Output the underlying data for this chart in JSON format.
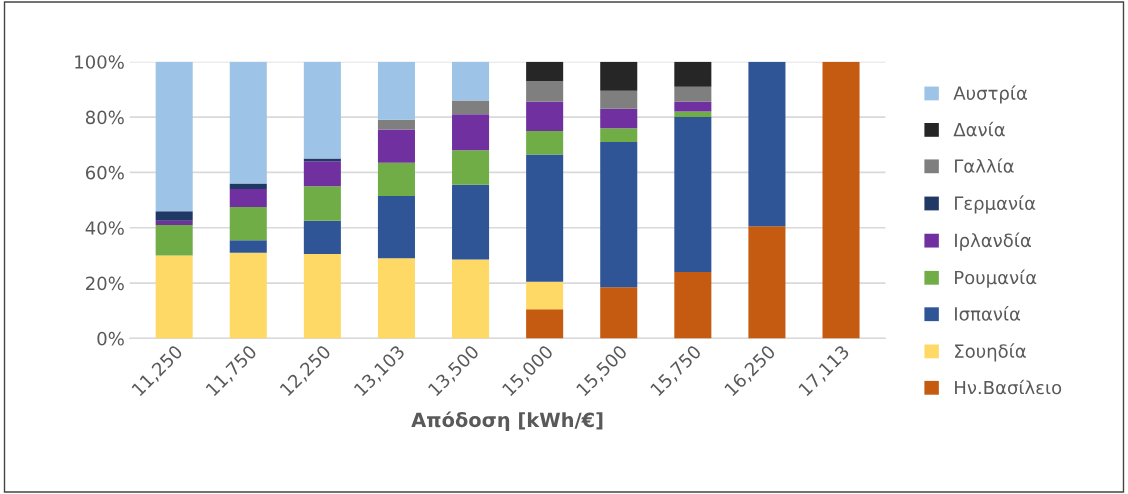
{
  "chart_data": {
    "type": "bar",
    "stacked": true,
    "xlabel": "Απόδοση [kWh/€]",
    "categories": [
      "11,250",
      "11,750",
      "12,250",
      "13,103",
      "13,500",
      "15,000",
      "15,500",
      "15,750",
      "16,250",
      "17,113"
    ],
    "series": [
      {
        "name": "Ην.Βασίλειο",
        "color": "#c55a11",
        "values": [
          0,
          0,
          0,
          0,
          0,
          10.5,
          18.5,
          24,
          40.5,
          100
        ]
      },
      {
        "name": "Σουηδία",
        "color": "#ffd966",
        "values": [
          30,
          31,
          30.5,
          29,
          28.5,
          10,
          0,
          0,
          0,
          0
        ]
      },
      {
        "name": "Ισπανία",
        "color": "#2f5597",
        "values": [
          0,
          4.5,
          12,
          22.5,
          27,
          46,
          52.5,
          56,
          59.5,
          0
        ]
      },
      {
        "name": "Ρουμανία",
        "color": "#70ad47",
        "values": [
          11,
          12,
          12.5,
          12,
          12.5,
          8.5,
          5,
          2,
          0,
          0
        ]
      },
      {
        "name": "Ιρλανδία",
        "color": "#7030a0",
        "values": [
          1.5,
          6.5,
          9,
          12,
          13,
          10.5,
          7,
          3.5,
          0,
          0
        ]
      },
      {
        "name": "Γερμανία",
        "color": "#203864",
        "values": [
          3.5,
          2,
          1,
          0,
          0,
          0,
          0,
          0,
          0,
          0
        ]
      },
      {
        "name": "Γαλλία",
        "color": "#7f7f7f",
        "values": [
          0,
          0,
          0,
          3.5,
          5,
          7.5,
          6.5,
          5.5,
          0,
          0
        ]
      },
      {
        "name": "Δανία",
        "color": "#262626",
        "values": [
          0,
          0,
          0,
          0,
          0,
          7,
          10.5,
          9,
          0,
          0
        ]
      },
      {
        "name": "Αυστρία",
        "color": "#9dc3e6",
        "values": [
          54,
          44,
          35,
          21,
          14,
          0,
          0,
          0,
          0,
          0
        ]
      }
    ],
    "ylim": [
      0,
      100
    ],
    "yticks": [
      {
        "value": 0,
        "label": "0%"
      },
      {
        "value": 20,
        "label": "20%"
      },
      {
        "value": 40,
        "label": "40%"
      },
      {
        "value": 60,
        "label": "60%"
      },
      {
        "value": 80,
        "label": "80%"
      },
      {
        "value": 100,
        "label": "100%"
      }
    ],
    "grid": "y",
    "legend": "right"
  }
}
